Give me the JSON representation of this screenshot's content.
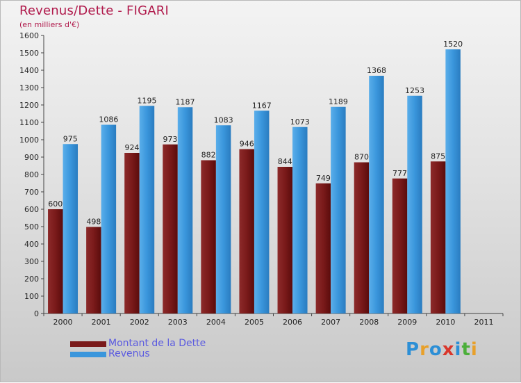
{
  "header": {
    "title": "Revenus/Dette - FIGARI",
    "subtitle": "(en milliers d'€)"
  },
  "colors": {
    "dette": "#7a1a1a",
    "revenus": "#3a96dc",
    "title": "#b0194b",
    "legend_text": "#5a5ae0"
  },
  "chart_data": {
    "type": "bar",
    "title": "Revenus/Dette - FIGARI",
    "subtitle": "(en milliers d'€)",
    "categories": [
      "2000",
      "2001",
      "2002",
      "2003",
      "2004",
      "2005",
      "2006",
      "2007",
      "2008",
      "2009",
      "2010",
      "2011"
    ],
    "series": [
      {
        "name": "Montant de la Dette",
        "values": [
          600,
          498,
          924,
          973,
          882,
          946,
          844,
          749,
          870,
          777,
          875,
          null
        ]
      },
      {
        "name": "Revenus",
        "values": [
          975,
          1086,
          1195,
          1187,
          1083,
          1167,
          1073,
          1189,
          1368,
          1253,
          1520,
          null
        ]
      }
    ],
    "ylim": [
      0,
      1600
    ],
    "ytick_step": 100,
    "grid": false,
    "legend_position": "bottom-left"
  },
  "logo": {
    "letters": [
      "P",
      "r",
      "o",
      "x",
      "i",
      "t",
      "i"
    ],
    "colors": [
      "#2c8fd6",
      "#e8a02a",
      "#2c8fd6",
      "#d9362b",
      "#2c8fd6",
      "#4caf3a",
      "#e8a02a"
    ]
  }
}
